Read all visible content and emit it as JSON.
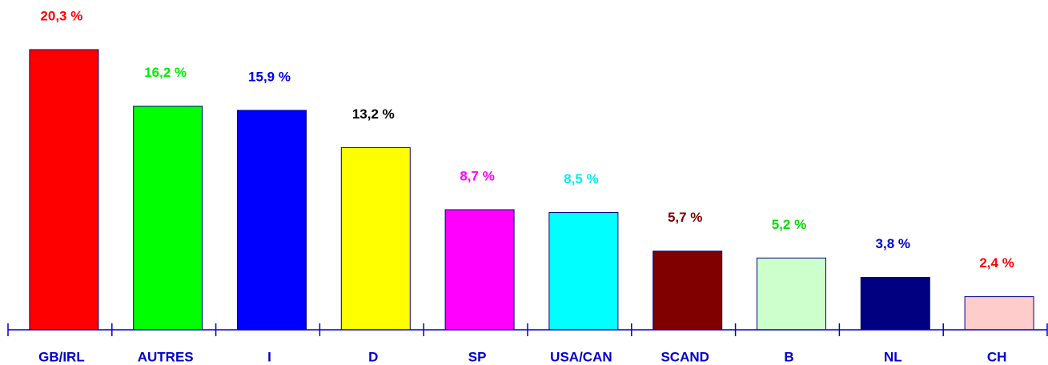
{
  "chart_data": {
    "type": "bar",
    "categories": [
      "GB/IRL",
      "AUTRES",
      "I",
      "D",
      "SP",
      "USA/CAN",
      "SCAND",
      "B",
      "NL",
      "CH"
    ],
    "values": [
      20.3,
      16.2,
      15.9,
      13.2,
      8.7,
      8.5,
      5.7,
      5.2,
      3.8,
      2.4
    ],
    "value_labels": [
      "20,3 %",
      "16,2 %",
      "15,9 %",
      "13,2  %",
      "8,7  %",
      "8,5 %",
      "5,7 %",
      "5,2 %",
      "3,8 %",
      "2,4 %"
    ],
    "colors": [
      "#ff0000",
      "#00ff00",
      "#0000ff",
      "#ffff00",
      "#ff00ff",
      "#00ffff",
      "#800000",
      "#ccffcc",
      "#000080",
      "#ffcccc"
    ],
    "value_label_colors": [
      "#ff0000",
      "#00ee00",
      "#0000ee",
      "#000000",
      "#ff00ff",
      "#00eeee",
      "#800000",
      "#00dd00",
      "#0000cc",
      "#ff0000"
    ],
    "axis_color": "#0000cc"
  }
}
